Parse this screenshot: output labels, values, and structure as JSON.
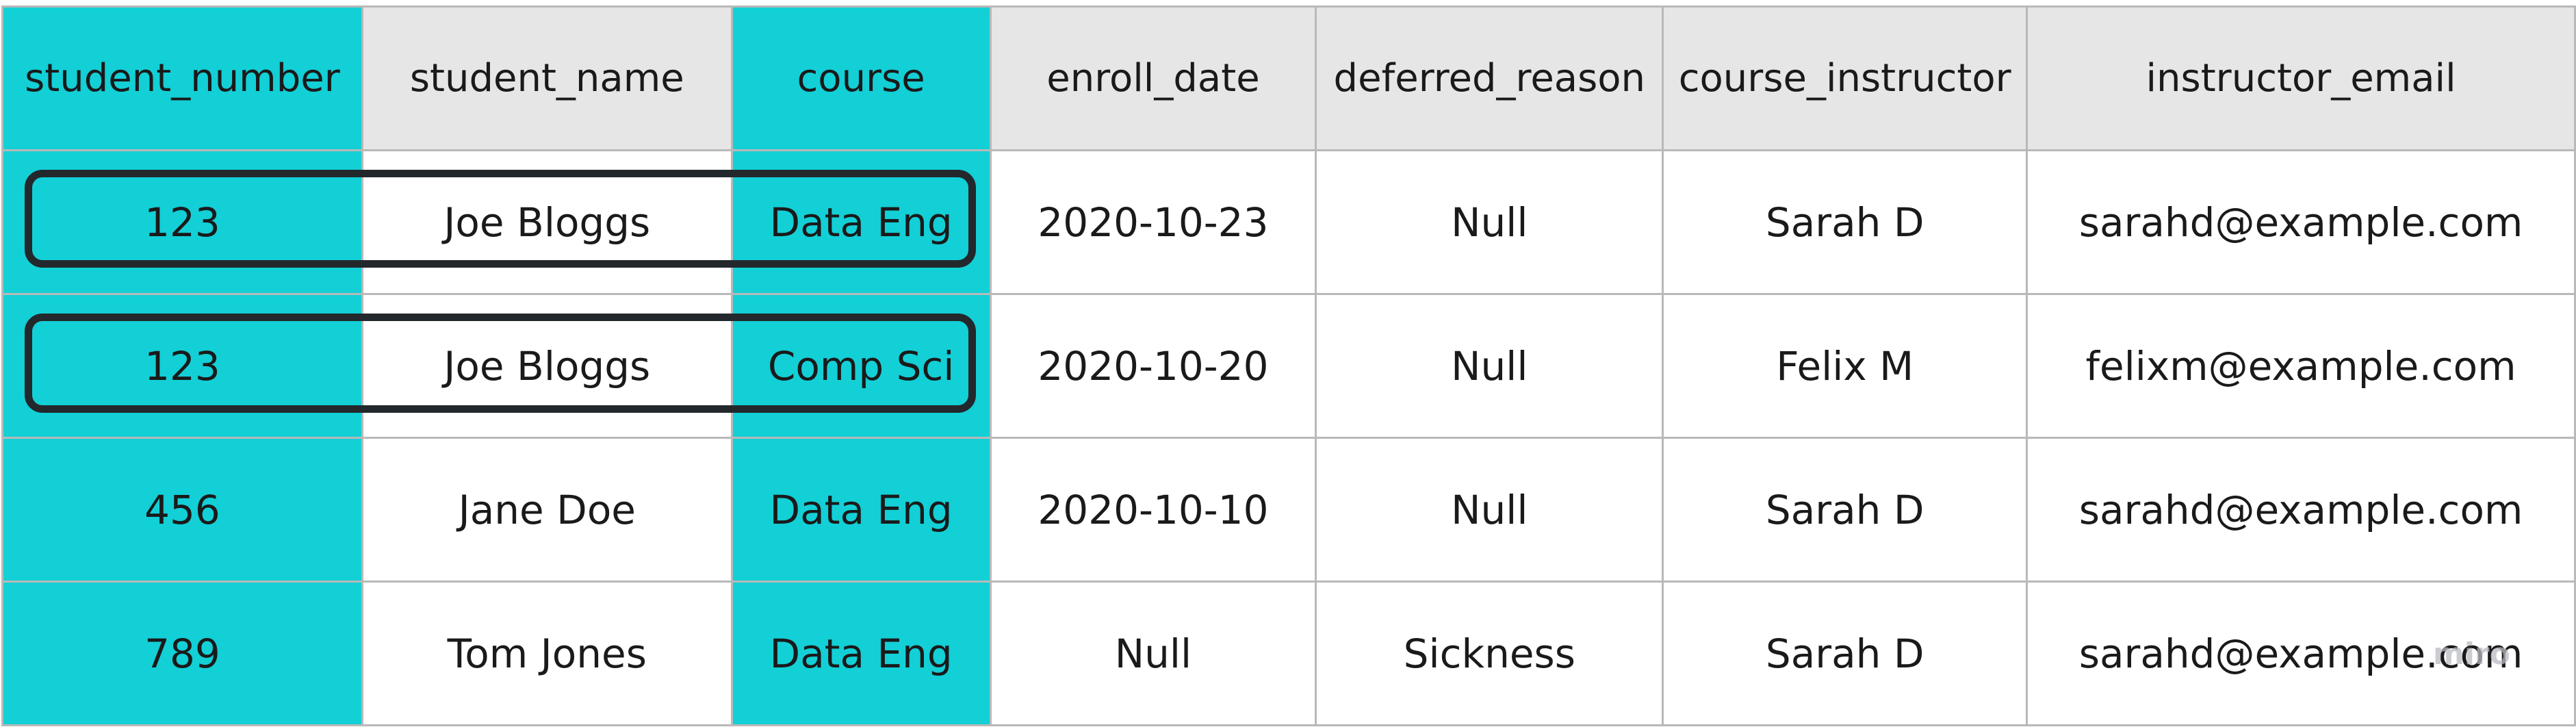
{
  "table": {
    "columns": [
      "student_number",
      "student_name",
      "course",
      "enroll_date",
      "deferred_reason",
      "course_instructor",
      "instructor_email"
    ],
    "key_columns": [
      "student_number",
      "course"
    ],
    "rows": [
      [
        "123",
        "Joe Bloggs",
        "Data Eng",
        "2020-10-23",
        "Null",
        "Sarah D",
        "sarahd@example.com"
      ],
      [
        "123",
        "Joe Bloggs",
        "Comp Sci",
        "2020-10-20",
        "Null",
        "Felix M",
        "felixm@example.com"
      ],
      [
        "456",
        "Jane Doe",
        "Data Eng",
        "2020-10-10",
        "Null",
        "Sarah D",
        "sarahd@example.com"
      ],
      [
        "789",
        "Tom Jones",
        "Data Eng",
        "Null",
        "Sickness",
        "Sarah D",
        "sarahd@example.com"
      ]
    ],
    "highlighted_rows": [
      0,
      1
    ]
  },
  "colors": {
    "key_column": "#13cfd6",
    "header_background": "#e6e6e6",
    "grid_line": "#b9b9b9",
    "highlight_outline": "#22282c"
  },
  "watermark": "miro"
}
